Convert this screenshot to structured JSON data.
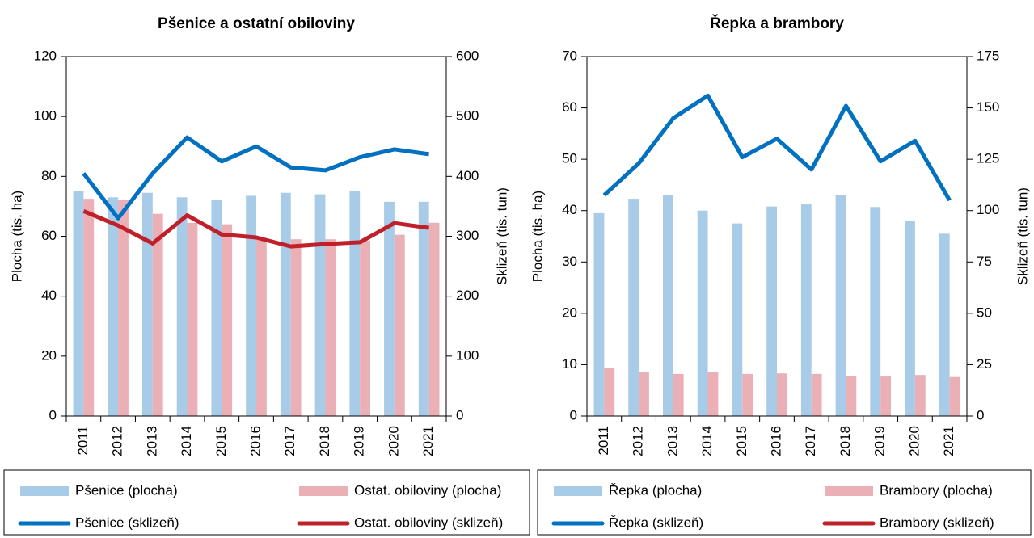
{
  "chart_data": [
    {
      "type": "bar",
      "title": "Pšenice a ostatní obiloviny",
      "ylabel": "Plocha (tis. ha)",
      "y2label": "Sklizeň (tis. tun)",
      "categories": [
        "2011",
        "2012",
        "2013",
        "2014",
        "2015",
        "2016",
        "2017",
        "2018",
        "2019",
        "2020",
        "2021"
      ],
      "ylim": [
        0,
        120
      ],
      "yticks": [
        0,
        20,
        40,
        60,
        80,
        100,
        120
      ],
      "y2lim": [
        0,
        600
      ],
      "y2ticks": [
        0,
        100,
        200,
        300,
        400,
        500,
        600
      ],
      "series": [
        {
          "name": "Pšenice (plocha)",
          "type": "bar",
          "color": "#a8cbe8",
          "values": [
            75,
            73,
            74.5,
            73,
            72,
            73.5,
            74.5,
            74,
            75,
            71.5,
            71.5
          ]
        },
        {
          "name": "Ostat. obiloviny (plocha)",
          "type": "bar",
          "color": "#eab0b5",
          "values": [
            72.5,
            72,
            67.5,
            64.5,
            64,
            59,
            59,
            59,
            58.5,
            60.5,
            64.5
          ]
        },
        {
          "name": "Pšenice (sklizeň)",
          "type": "line",
          "axis": "y2",
          "color": "#0070c0",
          "values": [
            405,
            330,
            405,
            465,
            425,
            450,
            415,
            410,
            432,
            445,
            437
          ]
        },
        {
          "name": "Ostat. obiloviny (sklizeň)",
          "type": "line",
          "axis": "y2",
          "color": "#c0202a",
          "values": [
            342,
            318,
            288,
            335,
            303,
            298,
            283,
            287,
            290,
            322,
            314
          ]
        }
      ]
    },
    {
      "type": "bar",
      "title": "Řepka a brambory",
      "ylabel": "Plocha (tis. ha)",
      "y2label": "Sklizeň (tis. tun)",
      "categories": [
        "2011",
        "2012",
        "2013",
        "2014",
        "2015",
        "2016",
        "2017",
        "2018",
        "2019",
        "2020",
        "2021"
      ],
      "ylim": [
        0,
        70
      ],
      "yticks": [
        0,
        10,
        20,
        30,
        40,
        50,
        60,
        70
      ],
      "y2lim": [
        0,
        175
      ],
      "y2ticks": [
        0,
        25,
        50,
        75,
        100,
        125,
        150,
        175
      ],
      "series": [
        {
          "name": "Řepka (plocha)",
          "type": "bar",
          "color": "#a8cbe8",
          "values": [
            39.5,
            42.3,
            43,
            40,
            37.5,
            40.8,
            41.2,
            43,
            40.7,
            38,
            35.5
          ]
        },
        {
          "name": "Brambory (plocha)",
          "type": "bar",
          "color": "#eab0b5",
          "values": [
            9.4,
            8.5,
            8.2,
            8.5,
            8.2,
            8.3,
            8.2,
            7.8,
            7.7,
            8,
            7.6
          ]
        },
        {
          "name": "Řepka (sklizeň)",
          "type": "line",
          "axis": "y2",
          "color": "#0070c0",
          "values": [
            107.5,
            123,
            145,
            156,
            126,
            135,
            120,
            151,
            124,
            134,
            105
          ]
        },
        {
          "name": "Brambory (sklizeň)",
          "type": "line",
          "axis": "y2",
          "color": "#c0202a",
          "values": [
            null,
            null,
            null,
            null,
            null,
            null,
            null,
            null,
            null,
            null,
            null
          ]
        }
      ]
    }
  ]
}
